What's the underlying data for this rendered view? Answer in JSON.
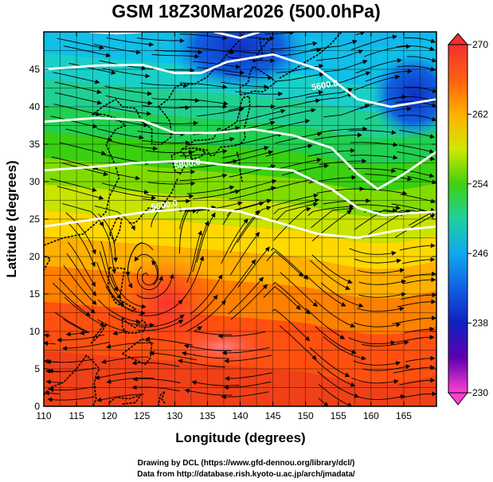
{
  "title": "GSM 18Z30Mar2026 (500.0hPa)",
  "axes": {
    "xlabel": "Longitude (degrees)",
    "ylabel": "Latitude  (degrees)",
    "xlim": [
      110,
      170
    ],
    "ylim": [
      0,
      50
    ],
    "xticks": [
      "110",
      "115",
      "120",
      "125",
      "130",
      "135",
      "140",
      "145",
      "150",
      "155",
      "160",
      "165"
    ],
    "yticks": [
      "0",
      "5",
      "10",
      "15",
      "20",
      "25",
      "30",
      "35",
      "40",
      "45"
    ]
  },
  "colorbar": {
    "min": 230,
    "max": 270,
    "ticks": [
      "270",
      "262",
      "254",
      "246",
      "238",
      "230"
    ],
    "colors": [
      "#ff2020",
      "#ff5a10",
      "#ffaa00",
      "#ffe000",
      "#88e000",
      "#22d010",
      "#20d080",
      "#10c8d0",
      "#1080f0",
      "#1030d0",
      "#3000a0",
      "#a000c0",
      "#ff40d0"
    ]
  },
  "contour_labels": [
    {
      "text": "5600.0",
      "lon": 153,
      "lat": 42.5
    },
    {
      "text": "5800.0",
      "lon": 132,
      "lat": 32
    },
    {
      "text": "5600.0",
      "lon": 128.5,
      "lat": 26.5
    }
  ],
  "credits": {
    "line1": "Drawing by DCL (https://www.gfd-dennou.org/library/dcl/)",
    "line2": "Data from http://database.rish.kyoto-u.ac.jp/arch/jmadata/"
  },
  "chart_data": {
    "type": "heatmap",
    "title": "GSM 18Z30Mar2026 (500.0hPa)",
    "xlabel": "Longitude (degrees)",
    "ylabel": "Latitude  (degrees)",
    "xlim": [
      110,
      170
    ],
    "ylim": [
      0,
      50
    ],
    "colorbar_range": [
      230,
      270
    ],
    "colorbar_ticks": [
      270,
      262,
      254,
      246,
      238,
      230
    ],
    "field": "temperature (K) with streamlines and geopotential height contours"
  }
}
